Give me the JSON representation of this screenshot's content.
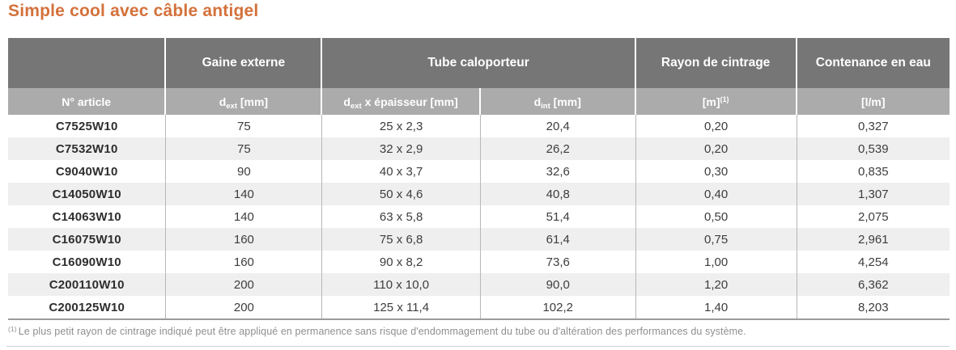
{
  "title": "Simple cool avec câble antigel",
  "colors": {
    "title_orange": "#d4713b",
    "header_dark_gray": "#767676",
    "header_light_gray": "#ababab",
    "row_alt_gray": "#efefef",
    "data_text": "#3d3d3d",
    "footnote_gray": "#8f8f8f"
  },
  "table": {
    "group_headers": [
      {
        "label": ""
      },
      {
        "label": "Gaine externe"
      },
      {
        "label": "Tube caloporteur",
        "colspan": 2
      },
      {
        "label": "Rayon de cintrage"
      },
      {
        "label": "Contenance en eau"
      }
    ],
    "columns": [
      {
        "label": "N° article"
      },
      {
        "pre": "d",
        "sub": "ext",
        "post": " [mm]"
      },
      {
        "pre": "d",
        "sub": "ext",
        "post": " x épaisseur [mm]"
      },
      {
        "pre": "d",
        "sub": "int",
        "post": " [mm]"
      },
      {
        "pre": "[m]",
        "sup": "(1)"
      },
      {
        "label": "[l/m]"
      }
    ],
    "rows": [
      [
        "C7525W10",
        "75",
        "25 x 2,3",
        "20,4",
        "0,20",
        "0,327"
      ],
      [
        "C7532W10",
        "75",
        "32 x 2,9",
        "26,2",
        "0,20",
        "0,539"
      ],
      [
        "C9040W10",
        "90",
        "40 x 3,7",
        "32,6",
        "0,30",
        "0,835"
      ],
      [
        "C14050W10",
        "140",
        "50 x 4,6",
        "40,8",
        "0,40",
        "1,307"
      ],
      [
        "C14063W10",
        "140",
        "63 x 5,8",
        "51,4",
        "0,50",
        "2,075"
      ],
      [
        "C16075W10",
        "160",
        "75 x 6,8",
        "61,4",
        "0,75",
        "2,961"
      ],
      [
        "C16090W10",
        "160",
        "90 x 8,2",
        "73,6",
        "1,00",
        "4,254"
      ],
      [
        "C200110W10",
        "200",
        "110 x 10,0",
        "90,0",
        "1,20",
        "6,362"
      ],
      [
        "C200125W10",
        "200",
        "125 x 11,4",
        "102,2",
        "1,40",
        "8,203"
      ]
    ]
  },
  "footnote": {
    "marker": "(1)",
    "text": "Le plus petit rayon de cintrage indiqué peut être appliqué en permanence sans risque d'endommagement du tube ou d'altération des performances du système."
  }
}
